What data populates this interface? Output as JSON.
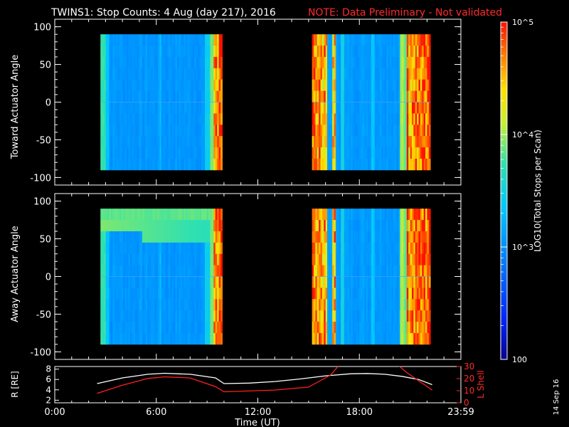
{
  "header": {
    "title": "TWINS1: Stop Counts:  4 Aug (day 217), 2016",
    "note": "NOTE: Data Preliminary - Not validated",
    "note_color": "#ff2a2a",
    "stamp": "14 Sep 16"
  },
  "colors": {
    "background": "#000000",
    "axes": "#ffffff",
    "l_shell_line": "#ff2020",
    "r_line": "#ffffff"
  },
  "chart_data": [
    {
      "type": "heatmap",
      "panel": "top",
      "ylabel": "Toward Actuator Angle",
      "ylim": [
        -110,
        110
      ],
      "yticks": [
        "100",
        "50",
        "0",
        "-50",
        "-100"
      ],
      "xlim_hours": [
        0,
        24
      ],
      "y_extent": [
        -90,
        90
      ],
      "data_blocks_hours": [
        [
          2.7,
          9.9
        ],
        [
          15.2,
          22.2
        ]
      ],
      "color_scale": "log10",
      "band_top_elevated": false
    },
    {
      "type": "heatmap",
      "panel": "middle",
      "ylabel": "Away Actuator Angle",
      "ylim": [
        -110,
        110
      ],
      "yticks": [
        "100",
        "50",
        "0",
        "-50",
        "-100"
      ],
      "xlim_hours": [
        0,
        24
      ],
      "y_extent": [
        -90,
        90
      ],
      "data_blocks_hours": [
        [
          2.7,
          9.9
        ],
        [
          15.2,
          22.2
        ]
      ],
      "color_scale": "log10",
      "band_top_elevated": true
    },
    {
      "type": "line",
      "panel": "bottom",
      "ylabel_left": "R [RE]",
      "ylabel_right": "L Shell",
      "left_ylim": [
        1.5,
        8.5
      ],
      "left_yticks": [
        "8",
        "6",
        "4",
        "2"
      ],
      "right_ylim": [
        0,
        30
      ],
      "right_yticks": [
        "30",
        "20",
        "10",
        "0"
      ],
      "xlabel": "Time (UT)",
      "xticks": [
        "0:00",
        "6:00",
        "12:00",
        "18:00",
        "23:59"
      ],
      "xtick_hours": [
        0,
        6,
        12,
        18,
        24
      ],
      "series": [
        {
          "axis": "left",
          "hours": [
            2.5,
            4.0,
            5.5,
            6.5,
            8.0,
            9.5,
            10.0,
            11.5,
            13.0,
            14.5,
            16.0,
            17.5,
            18.5,
            19.5,
            20.5,
            21.5,
            22.3
          ],
          "values": [
            5.2,
            6.3,
            7.0,
            7.2,
            7.0,
            6.3,
            5.2,
            5.3,
            5.6,
            6.1,
            6.7,
            7.1,
            7.15,
            7.0,
            6.6,
            6.0,
            5.0
          ]
        },
        {
          "axis": "right",
          "hours": [
            2.5,
            4.0,
            5.5,
            6.5,
            8.0,
            9.5,
            10.0,
            13.0,
            15.0,
            16.3,
            16.8,
            20.3,
            20.8,
            22.3
          ],
          "values": [
            7.8,
            14.6,
            20.1,
            21.5,
            20.5,
            13.4,
            9.1,
            10.5,
            13.0,
            23.0,
            31.0,
            31.0,
            25.0,
            10.5
          ]
        }
      ]
    }
  ],
  "colorbar": {
    "label": "LOG10(Total Stops per Scan)",
    "tick_labels": [
      "10^5",
      "10^4",
      "10^3",
      "100"
    ],
    "tick_values": [
      100000,
      10000,
      1000,
      100
    ]
  }
}
